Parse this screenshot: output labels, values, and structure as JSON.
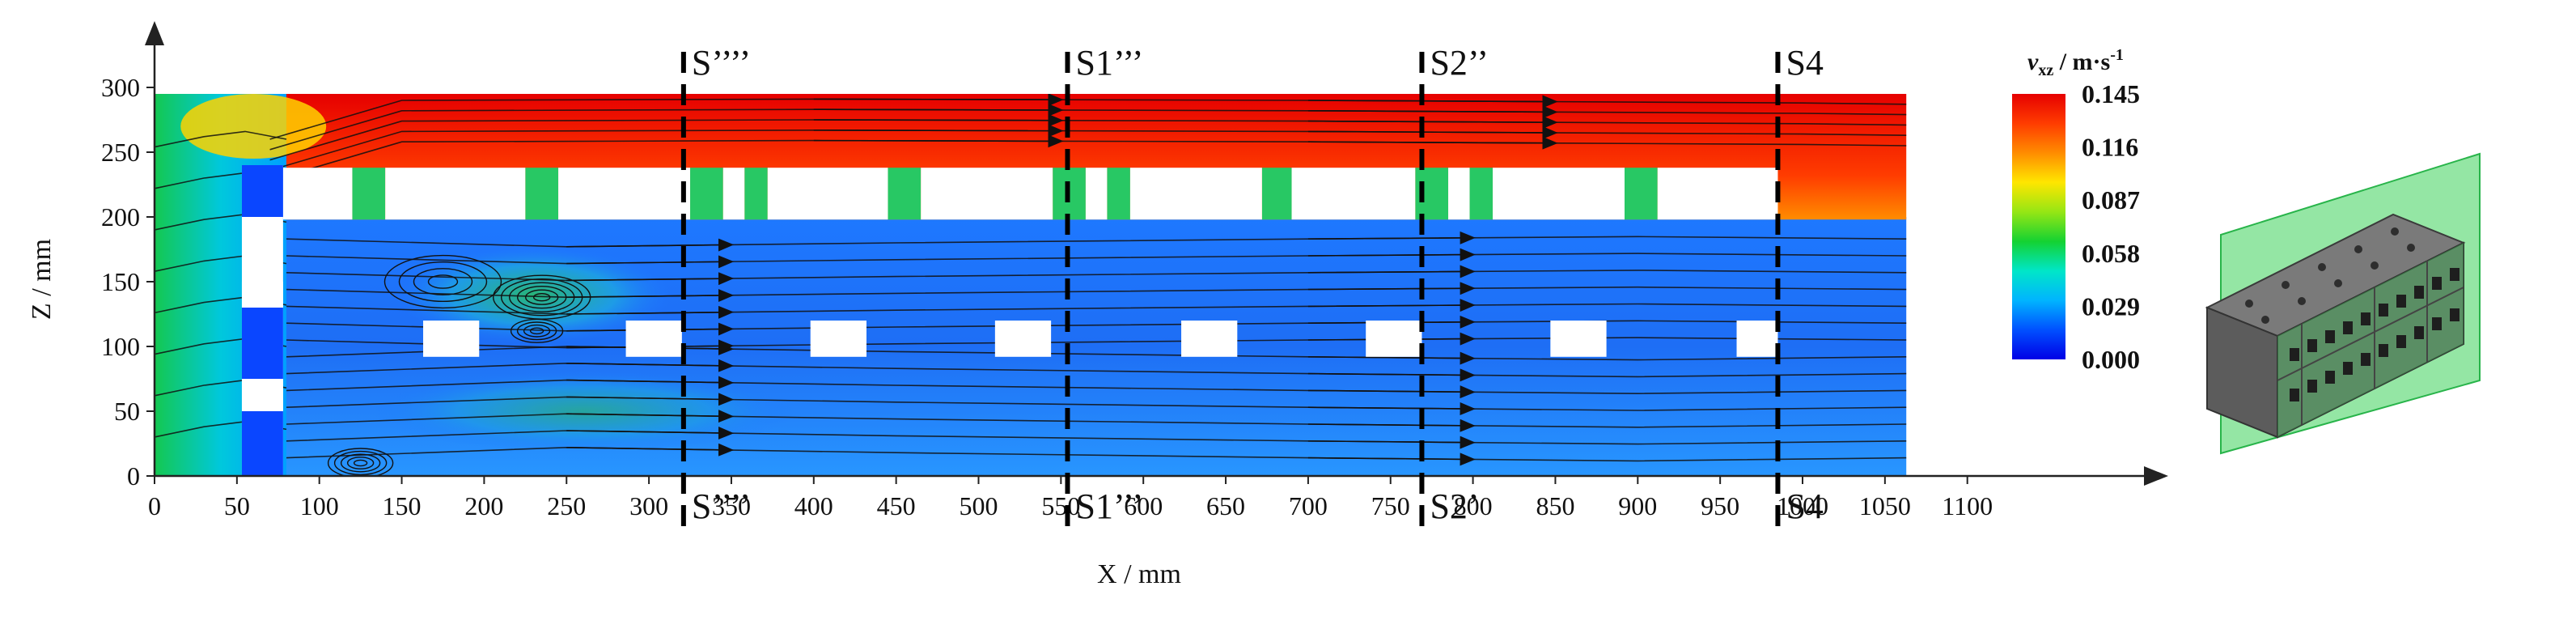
{
  "chart_data": {
    "type": "heatmap",
    "title": "",
    "xlabel": "X / mm",
    "ylabel": "Z / mm",
    "xlim": [
      0,
      1100
    ],
    "ylim": [
      0,
      300
    ],
    "domain": {
      "x": [
        0,
        1063
      ],
      "y": [
        0,
        295
      ]
    },
    "x_ticks": [
      "0",
      "50",
      "100",
      "150",
      "200",
      "250",
      "300",
      "350",
      "400",
      "450",
      "500",
      "550",
      "600",
      "650",
      "700",
      "750",
      "800",
      "850",
      "900",
      "950",
      "1000",
      "1050",
      "1100"
    ],
    "y_ticks": [
      "0",
      "50",
      "100",
      "150",
      "200",
      "250",
      "300"
    ],
    "colorbar": {
      "label": "v_xz / m·s⁻¹",
      "label_main": "v",
      "label_sub": "xz",
      "label_unit": " / m·s",
      "label_sup": "-1",
      "min": 0.0,
      "max": 0.145,
      "ticks": [
        "0.000",
        "0.029",
        "0.058",
        "0.087",
        "0.116",
        "0.145"
      ],
      "colors": [
        "#0000e6",
        "#0050ff",
        "#00b4ff",
        "#00e6c8",
        "#14d232",
        "#96e614",
        "#ffe600",
        "#ff8c00",
        "#ff3c00",
        "#e60000"
      ]
    },
    "section_lines": [
      {
        "x": 321,
        "top_label": "S’’’’",
        "bottom_label": "S’’’’"
      },
      {
        "x": 554,
        "top_label": "S1’’’",
        "bottom_label": "S1’’’"
      },
      {
        "x": 769,
        "top_label": "S2’’",
        "bottom_label": "S2’"
      },
      {
        "x": 985,
        "top_label": "S4",
        "bottom_label": "S4"
      }
    ],
    "fields": [
      {
        "zone": "top-channel",
        "z_range": [
          250,
          295
        ],
        "v": 0.14
      },
      {
        "zone": "inlet-jet",
        "x_range": [
          0,
          80
        ],
        "z_range": [
          0,
          300
        ],
        "v": 0.06
      },
      {
        "zone": "main-flow",
        "z_range": [
          0,
          200
        ],
        "v": 0.02
      },
      {
        "zone": "vortex-region",
        "x_range": [
          100,
          300
        ],
        "z_range": [
          100,
          180
        ],
        "v": 0.04
      }
    ],
    "blocks_top_row": [
      [
        78,
        120
      ],
      [
        140,
        225
      ],
      [
        245,
        325
      ],
      [
        345,
        358
      ],
      [
        372,
        445
      ],
      [
        465,
        545
      ],
      [
        565,
        578
      ],
      [
        592,
        672
      ],
      [
        690,
        765
      ],
      [
        785,
        798
      ],
      [
        812,
        892
      ],
      [
        912,
        985
      ]
    ],
    "blocks_top_row_z": [
      198,
      238
    ],
    "blocks_mid_row": [
      [
        163,
        197
      ],
      [
        286,
        320
      ],
      [
        398,
        432
      ],
      [
        510,
        544
      ],
      [
        623,
        657
      ],
      [
        735,
        769
      ],
      [
        847,
        881
      ],
      [
        960,
        985
      ]
    ],
    "blocks_mid_row_z": [
      92,
      120
    ],
    "inlet_gaps": [
      [
        200,
        240
      ],
      [
        75,
        130
      ],
      [
        0,
        50
      ]
    ]
  }
}
